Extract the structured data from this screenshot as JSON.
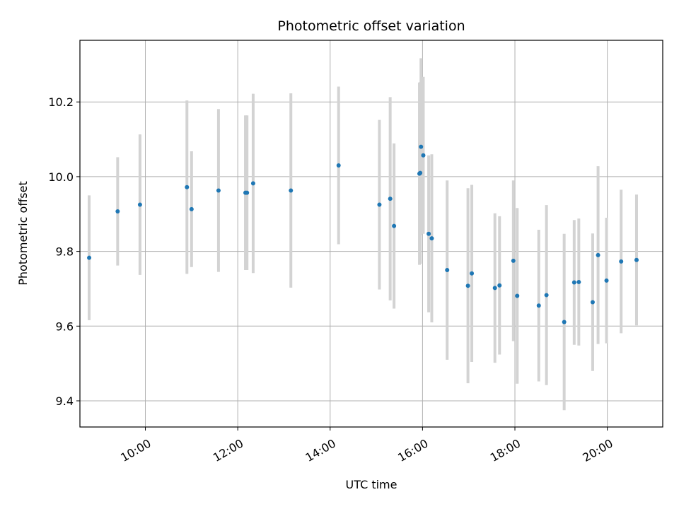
{
  "chart_data": {
    "type": "scatter",
    "title": "Photometric offset variation",
    "xlabel": "UTC time",
    "ylabel": "Photometric offset",
    "x_unit": "hours",
    "xlim": [
      "08:35",
      "21:12"
    ],
    "ylim": [
      9.33,
      10.365
    ],
    "x_ticks": [
      {
        "value": "10:00",
        "label": "10:00"
      },
      {
        "value": "12:00",
        "label": "12:00"
      },
      {
        "value": "14:00",
        "label": "14:00"
      },
      {
        "value": "16:00",
        "label": "16:00"
      },
      {
        "value": "18:00",
        "label": "18:00"
      },
      {
        "value": "20:00",
        "label": "20:00"
      }
    ],
    "y_ticks": [
      9.4,
      9.6,
      9.8,
      10.0,
      10.2
    ],
    "y_tick_labels": [
      "9.4",
      "9.6",
      "9.8",
      "10.0",
      "10.2"
    ],
    "grid": true,
    "point_color": "#1f77b4",
    "errorbar_color": "#d3d3d3",
    "points": [
      {
        "x": "08:47",
        "y": 9.783,
        "err": 0.167
      },
      {
        "x": "09:24",
        "y": 9.907,
        "err": 0.145
      },
      {
        "x": "09:53",
        "y": 9.925,
        "err": 0.188
      },
      {
        "x": "10:54",
        "y": 9.972,
        "err": 0.232
      },
      {
        "x": "11:00",
        "y": 9.913,
        "err": 0.155
      },
      {
        "x": "11:35",
        "y": 9.963,
        "err": 0.218
      },
      {
        "x": "12:10",
        "y": 9.957,
        "err": 0.207
      },
      {
        "x": "12:12",
        "y": 9.957,
        "err": 0.207
      },
      {
        "x": "12:20",
        "y": 9.982,
        "err": 0.24
      },
      {
        "x": "13:09",
        "y": 9.963,
        "err": 0.26
      },
      {
        "x": "14:11",
        "y": 10.03,
        "err": 0.211
      },
      {
        "x": "15:04",
        "y": 9.925,
        "err": 0.227
      },
      {
        "x": "15:18",
        "y": 9.941,
        "err": 0.272
      },
      {
        "x": "15:23",
        "y": 9.868,
        "err": 0.221
      },
      {
        "x": "15:56",
        "y": 10.008,
        "err": 0.244
      },
      {
        "x": "15:57",
        "y": 10.01,
        "err": 0.243
      },
      {
        "x": "15:58",
        "y": 10.08,
        "err": 0.237
      },
      {
        "x": "16:01",
        "y": 10.057,
        "err": 0.21
      },
      {
        "x": "16:08",
        "y": 9.847,
        "err": 0.21
      },
      {
        "x": "16:12",
        "y": 9.835,
        "err": 0.225
      },
      {
        "x": "16:32",
        "y": 9.75,
        "err": 0.24
      },
      {
        "x": "16:59",
        "y": 9.708,
        "err": 0.261
      },
      {
        "x": "17:04",
        "y": 9.741,
        "err": 0.237
      },
      {
        "x": "17:34",
        "y": 9.702,
        "err": 0.2
      },
      {
        "x": "17:40",
        "y": 9.709,
        "err": 0.185
      },
      {
        "x": "17:58",
        "y": 9.775,
        "err": 0.215
      },
      {
        "x": "18:03",
        "y": 9.681,
        "err": 0.235
      },
      {
        "x": "18:31",
        "y": 9.655,
        "err": 0.203
      },
      {
        "x": "18:41",
        "y": 9.683,
        "err": 0.241
      },
      {
        "x": "19:04",
        "y": 9.611,
        "err": 0.236
      },
      {
        "x": "19:17",
        "y": 9.717,
        "err": 0.167
      },
      {
        "x": "19:23",
        "y": 9.718,
        "err": 0.17
      },
      {
        "x": "19:41",
        "y": 9.664,
        "err": 0.184
      },
      {
        "x": "19:48",
        "y": 9.79,
        "err": 0.238
      },
      {
        "x": "19:59",
        "y": 9.722,
        "err": 0.168
      },
      {
        "x": "20:18",
        "y": 9.773,
        "err": 0.192
      },
      {
        "x": "20:38",
        "y": 9.777,
        "err": 0.175
      }
    ]
  }
}
